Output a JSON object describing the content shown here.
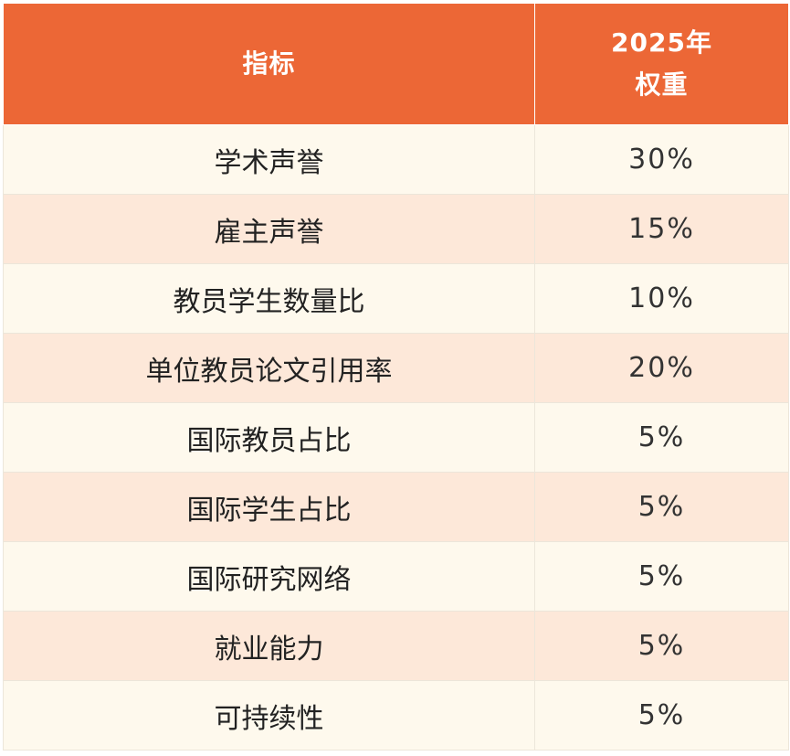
{
  "table": {
    "headers": {
      "indicator": "指标",
      "weight_line1": "2025年",
      "weight_line2": "权重"
    },
    "rows": [
      {
        "indicator": "学术声誉",
        "weight": "30%"
      },
      {
        "indicator": "雇主声誉",
        "weight": "15%"
      },
      {
        "indicator": "教员学生数量比",
        "weight": "10%"
      },
      {
        "indicator": "单位教员论文引用率",
        "weight": "20%"
      },
      {
        "indicator": "国际教员占比",
        "weight": "5%"
      },
      {
        "indicator": "国际学生占比",
        "weight": "5%"
      },
      {
        "indicator": "国际研究网络",
        "weight": "5%"
      },
      {
        "indicator": "就业能力",
        "weight": "5%"
      },
      {
        "indicator": "可持续性",
        "weight": "5%"
      }
    ],
    "colors": {
      "header_bg": "#ec6736",
      "header_text": "#ffffff",
      "row_odd_bg": "#fef9ed",
      "row_even_bg": "#fde8d9"
    }
  }
}
